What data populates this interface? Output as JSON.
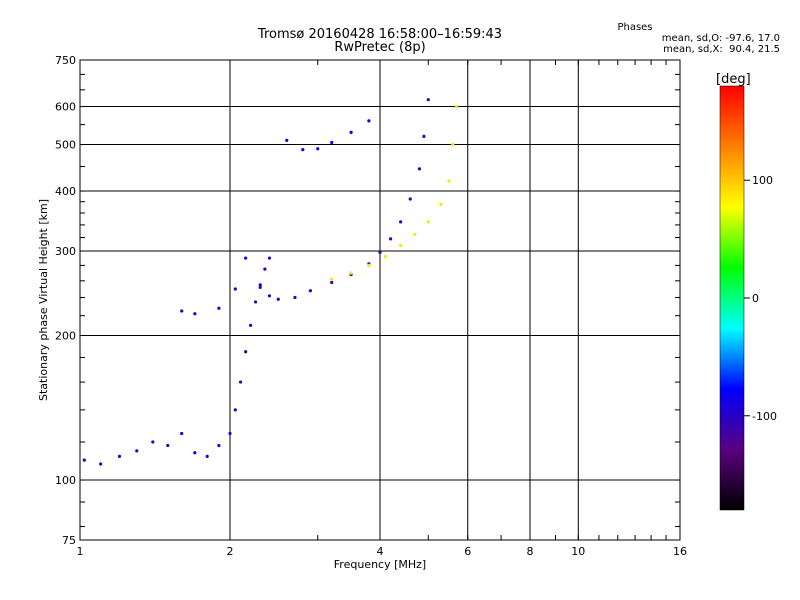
{
  "header": {
    "title_line1": "Tromsø 20160428 16:58:00–16:59:43",
    "title_line2": "RwPretec (8p)",
    "stats_line1": "Phases",
    "stats_line2": "mean, sd,O: -97.6, 17.0",
    "stats_line3": "mean, sd,X:  90.4, 21.5"
  },
  "chart_data": {
    "type": "scatter",
    "title": "Tromsø 20160428 16:58:00–16:59:43",
    "subtitle": "RwPretec (8p)",
    "xlabel": "Frequency [MHz]",
    "ylabel": "Stationary phase Virtual Height [km]",
    "x_scale": "log",
    "y_scale": "log",
    "xlim": [
      1,
      16
    ],
    "ylim": [
      75,
      750
    ],
    "x_ticks": [
      1,
      2,
      4,
      6,
      8,
      10,
      16
    ],
    "y_ticks": [
      75,
      100,
      200,
      300,
      400,
      500,
      600,
      750
    ],
    "x_gridlines": [
      2,
      4,
      6,
      8,
      10
    ],
    "y_gridlines": [
      100,
      200,
      300,
      400,
      500,
      600
    ],
    "colorbar": {
      "label": "[deg]",
      "range": [
        -180,
        180
      ],
      "ticks": [
        -100,
        0,
        100
      ],
      "colors": [
        "#000000",
        "#5a0080",
        "#0000ff",
        "#00ffff",
        "#00ff00",
        "#ffff00",
        "#ff8000",
        "#ff0000"
      ]
    },
    "phase_stats": {
      "O": {
        "mean": -97.6,
        "sd": 17.0
      },
      "X": {
        "mean": 90.4,
        "sd": 21.5
      }
    },
    "series": [
      {
        "trace": "O-low",
        "phase": -105,
        "points": [
          [
            1.02,
            110
          ],
          [
            1.1,
            108
          ],
          [
            1.2,
            112
          ],
          [
            1.3,
            115
          ],
          [
            1.4,
            120
          ],
          [
            1.5,
            118
          ],
          [
            1.6,
            125
          ],
          [
            1.7,
            114
          ],
          [
            1.8,
            112
          ],
          [
            1.9,
            118
          ],
          [
            2.0,
            125
          ],
          [
            2.05,
            140
          ],
          [
            2.1,
            160
          ],
          [
            2.15,
            185
          ],
          [
            2.2,
            210
          ],
          [
            2.25,
            235
          ],
          [
            2.3,
            255
          ],
          [
            2.35,
            275
          ],
          [
            2.4,
            290
          ]
        ]
      },
      {
        "trace": "O-main",
        "phase": -100,
        "points": [
          [
            2.3,
            252
          ],
          [
            2.4,
            242
          ],
          [
            2.5,
            238
          ],
          [
            2.7,
            240
          ],
          [
            2.9,
            248
          ],
          [
            3.2,
            258
          ],
          [
            3.5,
            268
          ],
          [
            3.8,
            282
          ],
          [
            4.0,
            298
          ],
          [
            4.2,
            318
          ],
          [
            4.4,
            345
          ],
          [
            4.6,
            385
          ],
          [
            4.8,
            445
          ],
          [
            4.9,
            520
          ],
          [
            5.0,
            620
          ]
        ]
      },
      {
        "trace": "X-main",
        "phase": 100,
        "points": [
          [
            3.2,
            262
          ],
          [
            3.5,
            270
          ],
          [
            3.8,
            280
          ],
          [
            4.1,
            292
          ],
          [
            4.4,
            308
          ],
          [
            4.7,
            325
          ],
          [
            5.0,
            345
          ],
          [
            5.3,
            375
          ],
          [
            5.5,
            420
          ],
          [
            5.6,
            500
          ],
          [
            5.7,
            600
          ]
        ]
      },
      {
        "trace": "O-high",
        "phase": -85,
        "points": [
          [
            2.6,
            510
          ],
          [
            2.8,
            488
          ],
          [
            3.0,
            490
          ],
          [
            3.2,
            505
          ],
          [
            3.5,
            530
          ],
          [
            3.8,
            560
          ]
        ]
      },
      {
        "trace": "scatter-low",
        "phase": -95,
        "points": [
          [
            1.6,
            225
          ],
          [
            1.7,
            222
          ],
          [
            1.9,
            228
          ],
          [
            2.05,
            250
          ],
          [
            2.15,
            290
          ]
        ]
      }
    ]
  }
}
